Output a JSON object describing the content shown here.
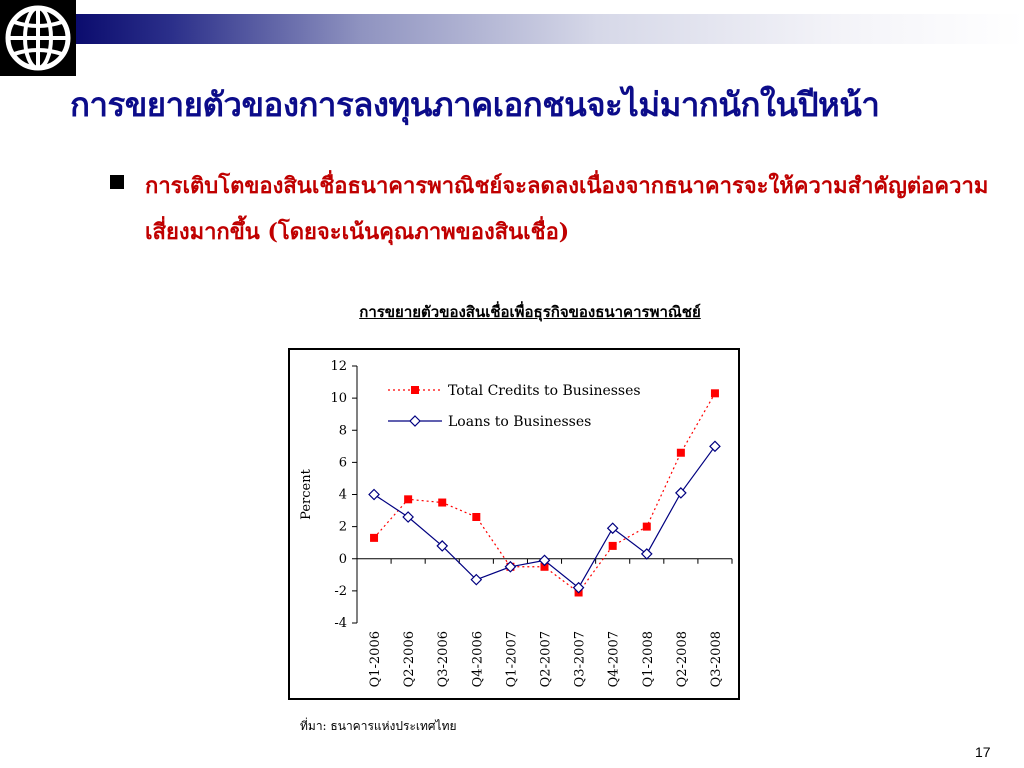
{
  "slide": {
    "title": "การขยายตัวของการลงทุนภาคเอกชนจะไม่มากนักในปีหน้า",
    "bullet": "การเติบโตของสินเชื่อธนาคารพาณิชย์จะลดลงเนื่องจากธนาคารจะให้ความสำคัญต่อความเสี่ยงมากขึ้น (โดยจะเน้นคุณภาพของสินเชื่อ)",
    "source": "ที่มา: ธนาคารแห่งประเทศไทย",
    "page_number": "17"
  },
  "colors": {
    "title": "#0c0c8a",
    "bullet_text": "#c00000",
    "series_total": "#ff0000",
    "series_loans": "#000080"
  },
  "icons": {
    "logo": "world-bank-globe-icon"
  },
  "chart_data": {
    "type": "line",
    "title": "การขยายตัวของสินเชื่อเพื่อธุรกิจของธนาคารพาณิชย์",
    "ylabel": "Percent",
    "xlabel": "",
    "ylim": [
      -4,
      12
    ],
    "yticks": [
      -4,
      -2,
      0,
      2,
      4,
      6,
      8,
      10,
      12
    ],
    "categories": [
      "Q1-2006",
      "Q2-2006",
      "Q3-2006",
      "Q4-2006",
      "Q1-2007",
      "Q2-2007",
      "Q3-2007",
      "Q4-2007",
      "Q1-2008",
      "Q2-2008",
      "Q3-2008"
    ],
    "legend_position": "top-left",
    "series": [
      {
        "name": "Total Credits to Businesses",
        "marker": "square",
        "line": "dotted",
        "color": "#ff0000",
        "values": [
          1.3,
          3.7,
          3.5,
          2.6,
          -0.5,
          -0.5,
          -2.1,
          0.8,
          2.0,
          6.6,
          10.3
        ]
      },
      {
        "name": "Loans to Businesses",
        "marker": "diamond",
        "line": "solid",
        "color": "#000080",
        "values": [
          4.0,
          2.6,
          0.8,
          -1.3,
          -0.5,
          -0.1,
          -1.8,
          1.9,
          0.3,
          4.1,
          7.0
        ]
      }
    ]
  }
}
